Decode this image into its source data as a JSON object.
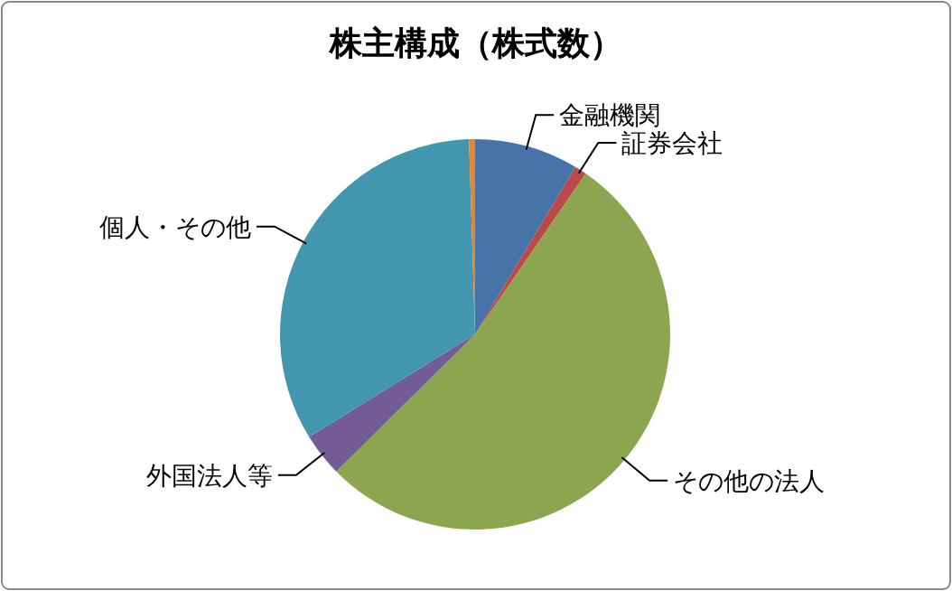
{
  "chart_data": {
    "type": "pie",
    "title": "株主構成（株式数）",
    "categories": [
      "金融機関",
      "証券会社",
      "その他の法人",
      "外国法人等",
      "個人・その他",
      null
    ],
    "values": [
      8.6,
      1,
      53,
      3.6,
      33.3,
      0.5
    ],
    "colors": [
      "#4674a8",
      "#b94a48",
      "#8ba64f",
      "#735b96",
      "#4297ae",
      "#e8832e"
    ]
  }
}
